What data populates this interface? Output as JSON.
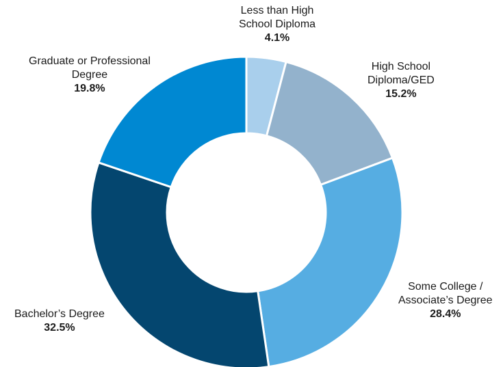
{
  "chart_data": {
    "type": "pie",
    "donut": true,
    "start_angle_deg": 0,
    "direction": "clockwise",
    "slices": [
      {
        "name_lines": [
          "Less than High",
          "School Diploma"
        ],
        "value": 4.1,
        "value_label": "4.1%",
        "color": "#a9cfec"
      },
      {
        "name_lines": [
          "High School",
          "Diploma/GED"
        ],
        "value": 15.2,
        "value_label": "15.2%",
        "color": "#93b2cc"
      },
      {
        "name_lines": [
          "Some College /",
          "Associate’s Degree"
        ],
        "value": 28.4,
        "value_label": "28.4%",
        "color": "#56ade2"
      },
      {
        "name_lines": [
          "Bachelor’s Degree"
        ],
        "value": 32.5,
        "value_label": "32.5%",
        "color": "#04466f"
      },
      {
        "name_lines": [
          "Graduate or Professional",
          "Degree"
        ],
        "value": 19.8,
        "value_label": "19.8%",
        "color": "#0088d2"
      }
    ],
    "legend": "none"
  }
}
